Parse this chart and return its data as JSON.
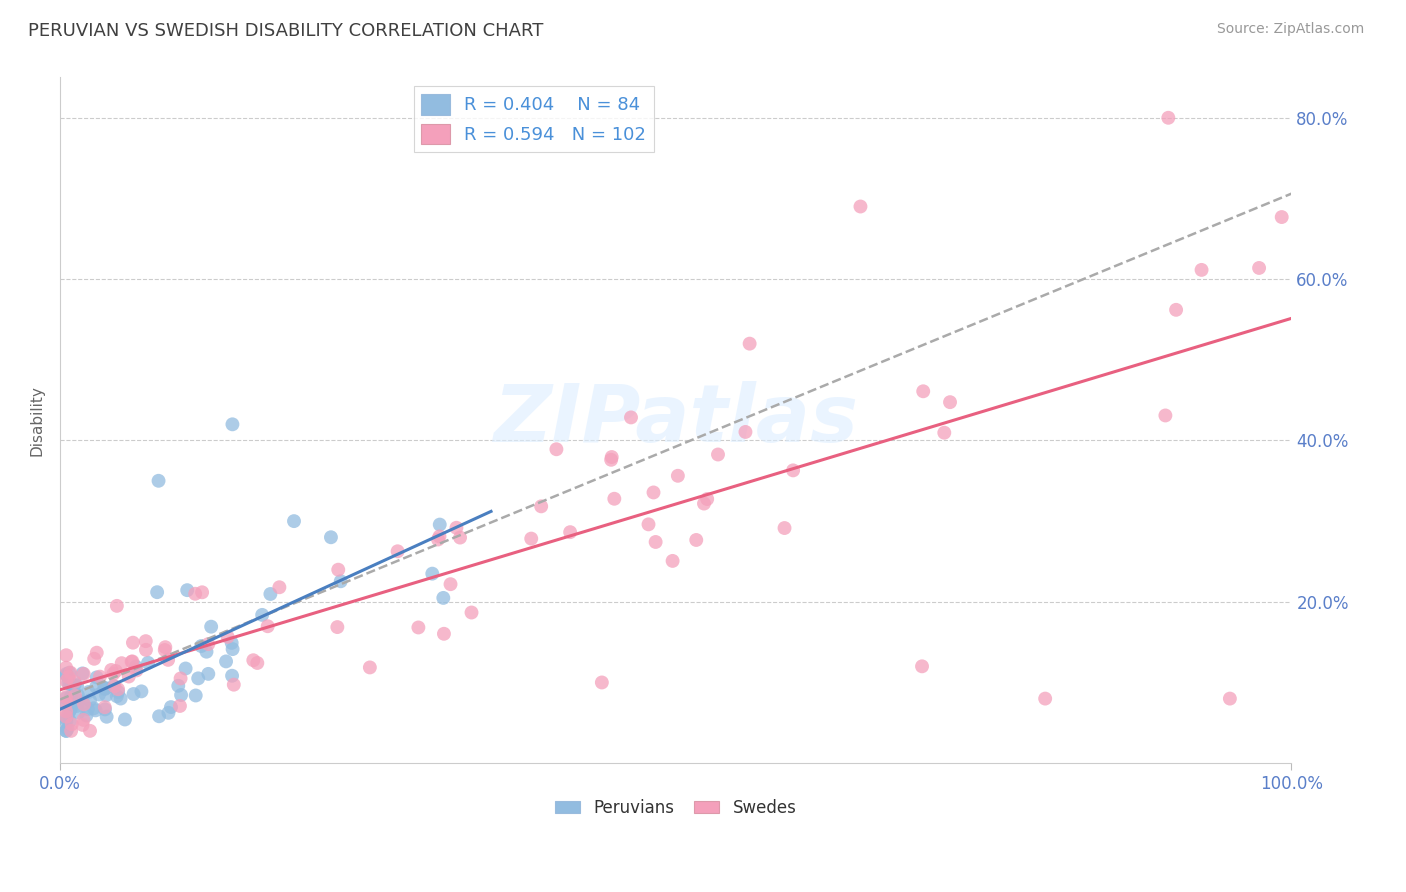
{
  "title": "PERUVIAN VS SWEDISH DISABILITY CORRELATION CHART",
  "source": "Source: ZipAtlas.com",
  "ylabel": "Disability",
  "xlim": [
    0.0,
    1.0
  ],
  "ylim": [
    0.0,
    0.85
  ],
  "blue_R": 0.404,
  "blue_N": 84,
  "pink_R": 0.594,
  "pink_N": 102,
  "blue_color": "#92bce0",
  "pink_color": "#f4a0bb",
  "blue_line_color": "#4a7fc0",
  "pink_line_color": "#e86080",
  "gray_dash_color": "#aaaaaa",
  "background_color": "#ffffff",
  "grid_color": "#cccccc",
  "title_color": "#404040",
  "axis_label_color": "#5a7fc9",
  "legend_text_color": "#4a90d9",
  "watermark_color": "#ddeeff"
}
